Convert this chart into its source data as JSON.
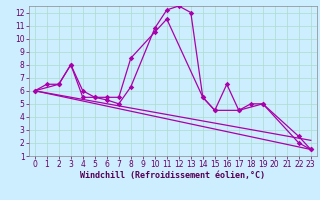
{
  "xlabel": "Windchill (Refroidissement éolien,°C)",
  "background_color": "#cceeff",
  "grid_color": "#aaddcc",
  "line_color": "#aa00aa",
  "xlim": [
    -0.5,
    23.5
  ],
  "ylim": [
    1,
    12.5
  ],
  "xticks": [
    0,
    1,
    2,
    3,
    4,
    5,
    6,
    7,
    8,
    9,
    10,
    11,
    12,
    13,
    14,
    15,
    16,
    17,
    18,
    19,
    20,
    21,
    22,
    23
  ],
  "yticks": [
    1,
    2,
    3,
    4,
    5,
    6,
    7,
    8,
    9,
    10,
    11,
    12
  ],
  "series1_x": [
    0,
    1,
    2,
    3,
    4,
    5,
    6,
    7,
    8,
    10,
    11,
    12,
    13,
    14,
    15,
    16,
    17,
    18,
    19,
    22,
    23
  ],
  "series1_y": [
    6.0,
    6.5,
    6.5,
    8.0,
    5.5,
    5.5,
    5.3,
    5.0,
    6.3,
    10.8,
    12.2,
    12.5,
    12.0,
    5.5,
    4.5,
    6.5,
    4.5,
    5.0,
    5.0,
    2.0,
    1.5
  ],
  "series2_x": [
    0,
    2,
    3,
    4,
    5,
    6,
    7,
    8,
    10,
    11,
    14,
    15,
    17,
    19,
    22,
    23
  ],
  "series2_y": [
    6.0,
    6.5,
    8.0,
    6.0,
    5.5,
    5.5,
    5.5,
    8.5,
    10.5,
    11.5,
    5.5,
    4.5,
    4.5,
    5.0,
    2.5,
    1.5
  ],
  "line3_x": [
    0,
    23
  ],
  "line3_y": [
    6.0,
    2.2
  ],
  "line4_x": [
    0,
    23
  ],
  "line4_y": [
    6.0,
    1.5
  ],
  "xlabel_fontsize": 6,
  "tick_fontsize": 5.5
}
